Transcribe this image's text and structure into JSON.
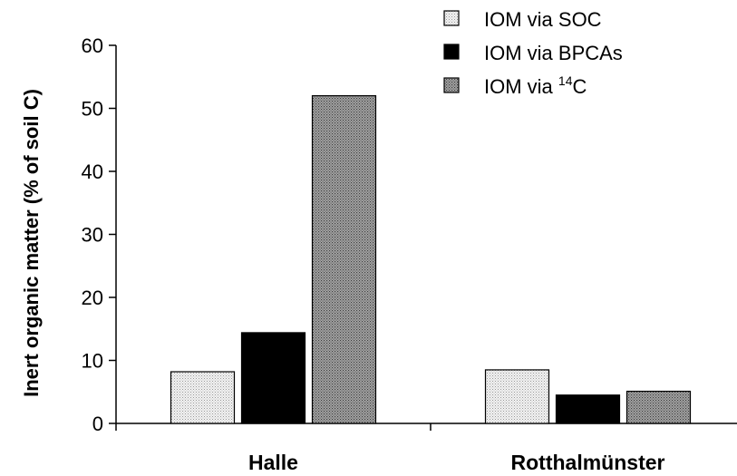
{
  "chart_data": {
    "type": "bar",
    "categories": [
      "Halle",
      "Rotthalmünster"
    ],
    "ylabel": "Inert organic matter (% of soil C)",
    "xlabel": "",
    "ylim": [
      0,
      60
    ],
    "yticks": [
      0,
      10,
      20,
      30,
      40,
      50,
      60
    ],
    "legend_position": "top-right",
    "series": [
      {
        "name": "IOM via SOC",
        "values": [
          8.2,
          8.5
        ],
        "color": "#e4e4e4",
        "pattern": "dotted-light"
      },
      {
        "name": "IOM via BPCAs",
        "values": [
          14.4,
          4.5
        ],
        "color": "#000000",
        "pattern": "solid"
      },
      {
        "name": "IOM via 14C",
        "legend_text_before": "IOM via ",
        "legend_sup": "14",
        "legend_text_after": "C",
        "values": [
          52.0,
          5.1
        ],
        "color": "#8a8a8a",
        "pattern": "dotted-dark"
      }
    ]
  }
}
